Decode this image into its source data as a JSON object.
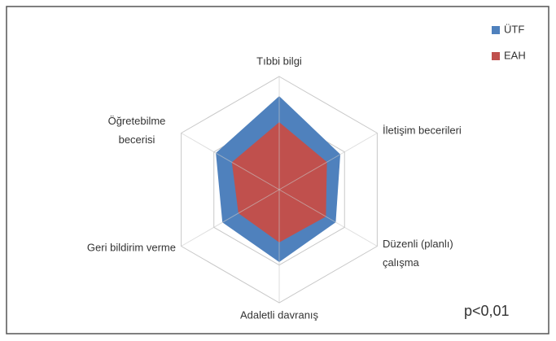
{
  "chart_data": {
    "type": "radar",
    "categories": [
      "Tıbbi bilgi",
      "İletişim becerileri",
      "Düzenli (planlı)\nçalışma",
      "Adaletli davranış",
      "Geri bildirim verme",
      "Öğretebilme\nbecerisi"
    ],
    "series": [
      {
        "name": "ÜTF",
        "color": "#4f81bd",
        "values": [
          2.48,
          1.87,
          1.73,
          1.92,
          1.74,
          1.94
        ]
      },
      {
        "name": "EAH",
        "color": "#c0504d",
        "values": [
          1.79,
          1.46,
          1.43,
          1.4,
          1.25,
          1.45
        ]
      }
    ],
    "rlim": [
      0,
      3
    ],
    "rticks": [
      1,
      2,
      3
    ],
    "grid": true,
    "legend": "upper right",
    "annotation": "p<0,01"
  }
}
